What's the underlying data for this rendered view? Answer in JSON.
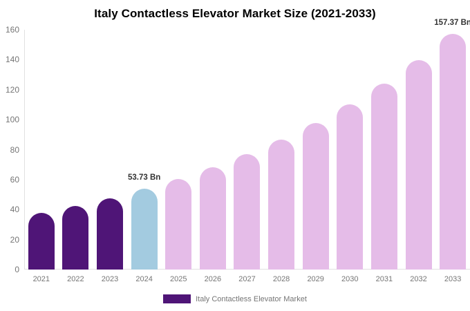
{
  "chart_data": {
    "type": "bar",
    "title": "Italy Contactless Elevator Market Size (2021-2033)",
    "categories": [
      "2021",
      "2022",
      "2023",
      "2024",
      "2025",
      "2026",
      "2027",
      "2028",
      "2029",
      "2030",
      "2031",
      "2032",
      "2033"
    ],
    "series": [
      {
        "name": "Italy Contactless Elevator Market",
        "values": [
          37.6,
          42.3,
          47.7,
          53.73,
          60.5,
          68.2,
          76.9,
          86.6,
          97.6,
          110.0,
          123.9,
          139.6,
          157.37
        ]
      }
    ],
    "bar_colors": [
      "#4F1577",
      "#4F1577",
      "#4F1577",
      "#A3CBE0",
      "#E5BCE8",
      "#E5BCE8",
      "#E5BCE8",
      "#E5BCE8",
      "#E5BCE8",
      "#E5BCE8",
      "#E5BCE8",
      "#E5BCE8",
      "#E5BCE8"
    ],
    "annotations": [
      {
        "category": "2024",
        "text": "53.73 Bn"
      },
      {
        "category": "2033",
        "text": "157.37 Bn"
      }
    ],
    "xlabel": "",
    "ylabel": "",
    "ylim": [
      0,
      160
    ],
    "yticks": [
      0,
      20,
      40,
      60,
      80,
      100,
      120,
      140,
      160
    ],
    "grid": false,
    "legend": {
      "position": "bottom",
      "entries": [
        {
          "label": "Italy Contactless Elevator Market",
          "color": "#4F1577"
        }
      ]
    },
    "colors": {
      "historical_bar": "#4F1577",
      "base_year_bar": "#A3CBE0",
      "forecast_bar": "#E5BCE8",
      "axis_line": "#E1E1E1",
      "tick_text": "#757575",
      "annotation_text": "#333333",
      "title_text": "#000000",
      "background": "#FFFFFF"
    }
  }
}
